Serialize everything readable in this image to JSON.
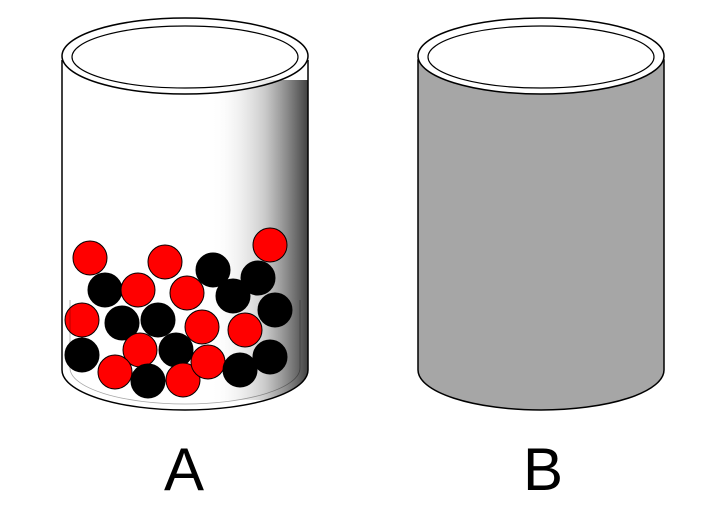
{
  "containers": [
    {
      "label": "A",
      "contents": "marbles",
      "marble_counts": {
        "red": 13,
        "black": 15
      },
      "colors": {
        "red": "#ff0000",
        "black": "#000000"
      }
    },
    {
      "label": "B",
      "contents": "opaque",
      "fill_color": "#a6a6a6"
    }
  ]
}
